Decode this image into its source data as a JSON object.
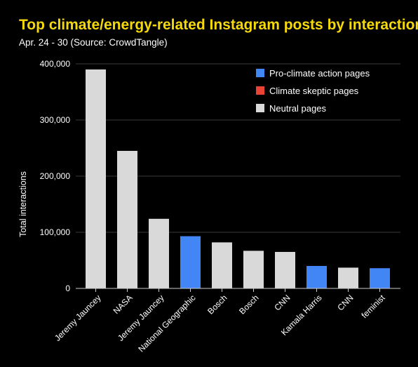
{
  "chart_data": {
    "type": "bar",
    "title": "Top climate/energy-related Instagram posts by interactions",
    "subtitle": "Apr. 24 - 30 (Source: CrowdTangle)",
    "xlabel": "",
    "ylabel": "Total interactions",
    "ylim": [
      0,
      400000
    ],
    "yticks": [
      0,
      100000,
      200000,
      300000,
      400000
    ],
    "ytick_labels": [
      "0",
      "100,000",
      "200,000",
      "300,000",
      "400,000"
    ],
    "grid": true,
    "legend_position": "top-right",
    "legend": [
      {
        "key": "pro",
        "label": "Pro-climate action pages",
        "color": "#4285f4"
      },
      {
        "key": "skeptic",
        "label": "Climate skeptic pages",
        "color": "#ea4335"
      },
      {
        "key": "neutral",
        "label": "Neutral pages",
        "color": "#d9d9d9"
      }
    ],
    "categories": [
      "Jeremy Jauncey",
      "NASA",
      "Jeremy Jauncey",
      "National Geographic",
      "Bosch",
      "Bosch",
      "CNN",
      "Kamala Harris",
      "CNN",
      "feminist"
    ],
    "values": [
      390000,
      245000,
      124000,
      93000,
      82000,
      67000,
      65000,
      40000,
      37000,
      36000
    ],
    "bar_groups": [
      "neutral",
      "neutral",
      "neutral",
      "pro",
      "neutral",
      "neutral",
      "neutral",
      "pro",
      "neutral",
      "pro"
    ]
  }
}
